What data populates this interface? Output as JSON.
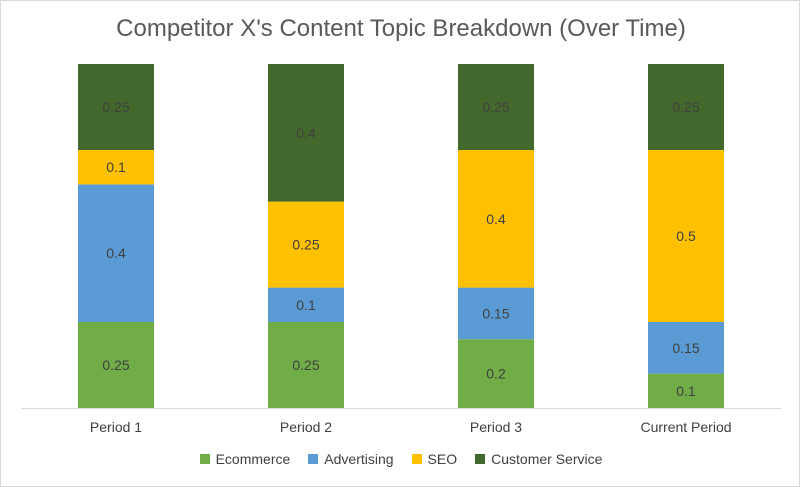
{
  "chart_data": {
    "type": "bar",
    "stacked": true,
    "title": "Competitor X's Content Topic Breakdown (Over Time)",
    "xlabel": "",
    "ylabel": "",
    "ylim": [
      0,
      1
    ],
    "grid": false,
    "legend_position": "bottom",
    "categories": [
      "Period 1",
      "Period 2",
      "Period 3",
      "Current Period"
    ],
    "series": [
      {
        "name": "Ecommerce",
        "color": "#70ad47",
        "values": [
          0.25,
          0.25,
          0.2,
          0.1
        ],
        "labels": [
          "0.25",
          "0.25",
          "0.2",
          "0.1"
        ]
      },
      {
        "name": "Advertising",
        "color": "#5b9bd5",
        "values": [
          0.4,
          0.1,
          0.15,
          0.15
        ],
        "labels": [
          "0.4",
          "0.1",
          "0.15",
          "0.15"
        ]
      },
      {
        "name": "SEO",
        "color": "#ffc000",
        "values": [
          0.1,
          0.25,
          0.4,
          0.5
        ],
        "labels": [
          "0.1",
          "0.25",
          "0.4",
          "0.5"
        ]
      },
      {
        "name": "Customer Service",
        "color": "#43682b",
        "values": [
          0.25,
          0.4,
          0.25,
          0.25
        ],
        "labels": [
          "0.25",
          "0.4",
          "0.25",
          "0.25"
        ]
      }
    ]
  }
}
